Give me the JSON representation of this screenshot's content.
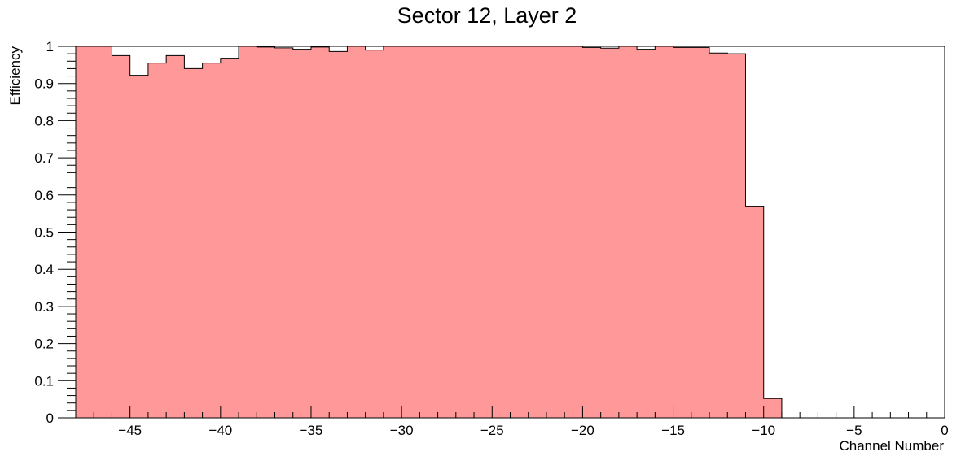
{
  "chart_data": {
    "type": "bar",
    "title": "Sector 12, Layer 2",
    "xlabel": "Channel Number",
    "ylabel": "Efficiency",
    "xlim": [
      -48,
      0
    ],
    "ylim": [
      0,
      1
    ],
    "bin_edges_start": -48,
    "bin_width": 1,
    "values": [
      1.0,
      1.0,
      0.975,
      0.922,
      0.955,
      0.975,
      0.94,
      0.955,
      0.968,
      1.0,
      0.998,
      0.996,
      0.992,
      0.998,
      0.986,
      1.0,
      0.99,
      1.0,
      1.0,
      1.0,
      1.0,
      1.0,
      1.0,
      1.0,
      1.0,
      1.0,
      1.0,
      1.0,
      0.997,
      0.995,
      1.0,
      0.992,
      1.0,
      0.997,
      0.997,
      0.982,
      0.98,
      0.568,
      0.052,
      0,
      0,
      0,
      0,
      0,
      0,
      0,
      0,
      0
    ],
    "x_tick_labels": [
      "−45",
      "−40",
      "−35",
      "−30",
      "−25",
      "−20",
      "−15",
      "−10",
      "−5",
      "0"
    ],
    "x_tick_values": [
      -45,
      -40,
      -35,
      -30,
      -25,
      -20,
      -15,
      -10,
      -5,
      0
    ],
    "y_tick_labels": [
      "0",
      "0.1",
      "0.2",
      "0.3",
      "0.4",
      "0.5",
      "0.6",
      "0.7",
      "0.8",
      "0.9",
      "1"
    ],
    "y_tick_values": [
      0,
      0.1,
      0.2,
      0.3,
      0.4,
      0.5,
      0.6,
      0.7,
      0.8,
      0.9,
      1.0
    ],
    "fill_color": "#ff9999",
    "line_color": "#000000",
    "grid": false
  }
}
